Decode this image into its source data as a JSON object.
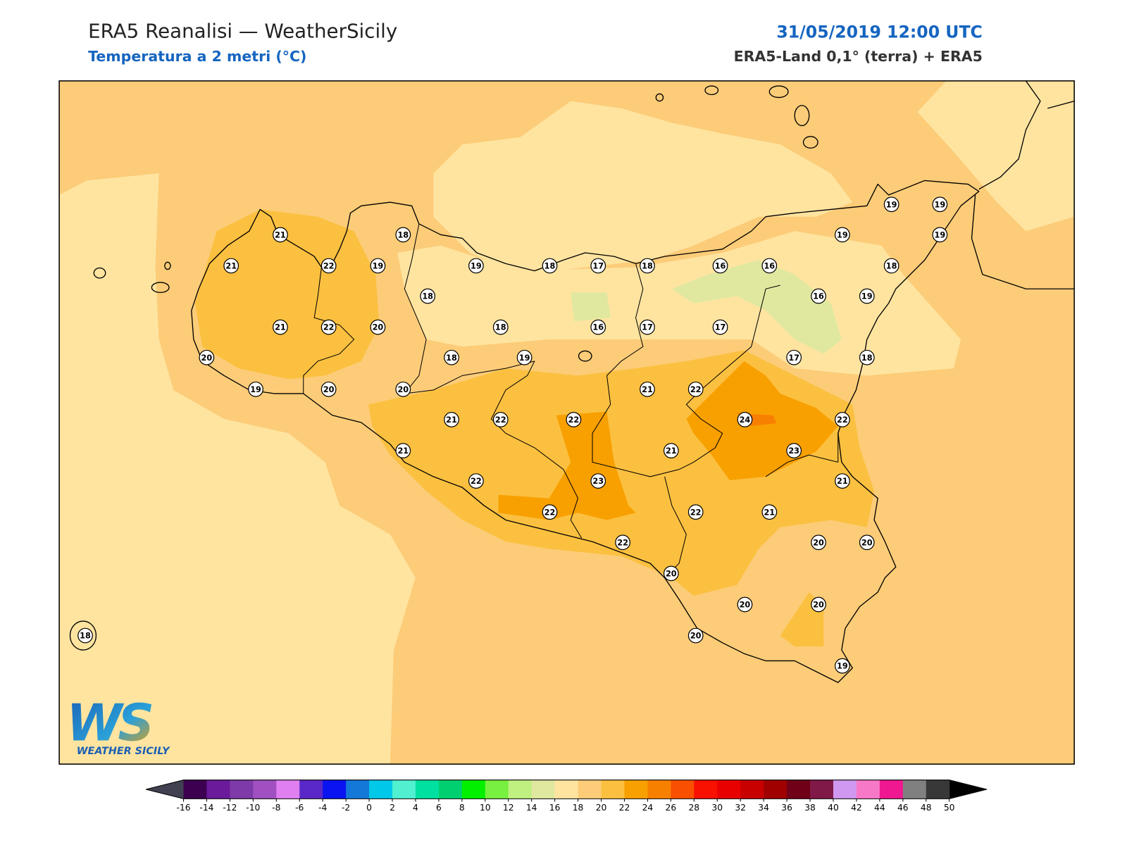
{
  "header": {
    "title": "ERA5 Reanalisi — WeatherSicily",
    "subtitle": "Temperatura a 2 metri (°C)",
    "datetime": "31/05/2019 12:00 UTC",
    "source": "ERA5-Land 0,1° (terra) + ERA5"
  },
  "stations": [
    19,
    19,
    21,
    18,
    19,
    19,
    21,
    22,
    19,
    19,
    18,
    17,
    18,
    16,
    16,
    18,
    18,
    16,
    19,
    21,
    22,
    20,
    18,
    16,
    17,
    17,
    20,
    18,
    19,
    17,
    18,
    19,
    20,
    20,
    21,
    22,
    21,
    22,
    22,
    24,
    22,
    21,
    21,
    23,
    22,
    23,
    21,
    22,
    22,
    21,
    22,
    20,
    20,
    20,
    20,
    20,
    18,
    20,
    19
  ],
  "colorbar": {
    "ticks": [
      -16,
      -14,
      -12,
      -10,
      -8,
      -6,
      -4,
      -2,
      0,
      2,
      4,
      6,
      8,
      10,
      12,
      14,
      16,
      18,
      20,
      22,
      24,
      26,
      28,
      30,
      32,
      34,
      36,
      38,
      40,
      42,
      44,
      46,
      48,
      50
    ],
    "colors": [
      "#3d0050",
      "#6a1a9a",
      "#7e3aa8",
      "#a050c0",
      "#e080f0",
      "#5a28c8",
      "#0a14f0",
      "#1478d8",
      "#00c8e8",
      "#50f0d0",
      "#00e0a0",
      "#00d070",
      "#00f000",
      "#78f040",
      "#c0f080",
      "#e0e8a0",
      "#ffe4a0",
      "#fccc78",
      "#fcc040",
      "#f8a000",
      "#f88000",
      "#f85000",
      "#f81000",
      "#e80000",
      "#c80000",
      "#a00000",
      "#700018",
      "#801848",
      "#d098f0",
      "#f878c8",
      "#f01890",
      "#808080",
      "#383838"
    ],
    "under_color": "#404050",
    "over_color": "#000000"
  },
  "logo": {
    "letters": "WS",
    "name": "WEATHER SICILY"
  }
}
